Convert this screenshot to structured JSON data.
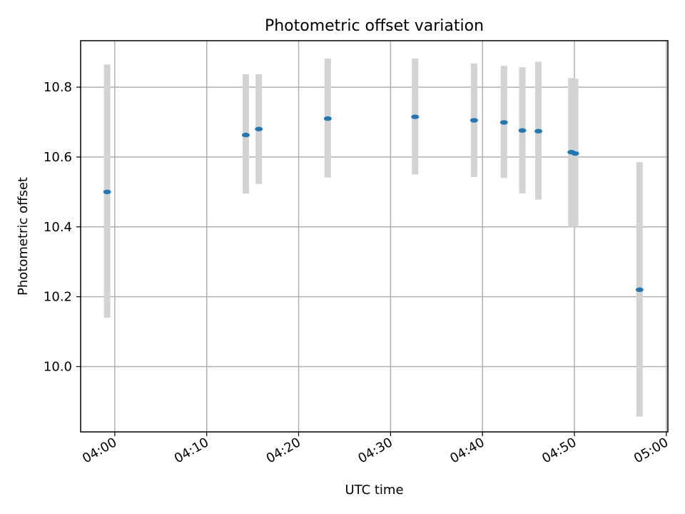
{
  "chart_data": {
    "type": "scatter",
    "title": "Photometric offset variation",
    "xlabel": "UTC time",
    "ylabel": "Photometric offset",
    "x_ticks": [
      "04:00",
      "04:10",
      "04:20",
      "04:30",
      "04:40",
      "04:50",
      "05:00"
    ],
    "y_ticks": [
      "10.0",
      "10.2",
      "10.4",
      "10.6",
      "10.8"
    ],
    "xlim": [
      "03:56:17",
      "05:00:10"
    ],
    "ylim": [
      9.813,
      10.933
    ],
    "grid": true,
    "point_color": "#1f77b4",
    "errorbar_color": "#d3d3d3",
    "points": [
      {
        "x": "03:59:10",
        "y": 10.5,
        "low": 10.14,
        "high": 10.865
      },
      {
        "x": "04:14:15",
        "y": 10.663,
        "low": 10.495,
        "high": 10.837
      },
      {
        "x": "04:15:40",
        "y": 10.68,
        "low": 10.523,
        "high": 10.837
      },
      {
        "x": "04:23:10",
        "y": 10.71,
        "low": 10.541,
        "high": 10.882
      },
      {
        "x": "04:32:40",
        "y": 10.715,
        "low": 10.55,
        "high": 10.882
      },
      {
        "x": "04:39:05",
        "y": 10.705,
        "low": 10.543,
        "high": 10.868
      },
      {
        "x": "04:42:20",
        "y": 10.699,
        "low": 10.54,
        "high": 10.861
      },
      {
        "x": "04:44:20",
        "y": 10.676,
        "low": 10.496,
        "high": 10.857
      },
      {
        "x": "04:46:05",
        "y": 10.674,
        "low": 10.478,
        "high": 10.873
      },
      {
        "x": "04:49:40",
        "y": 10.614,
        "low": 10.4,
        "high": 10.826
      },
      {
        "x": "04:50:05",
        "y": 10.61,
        "low": 10.4,
        "high": 10.824
      },
      {
        "x": "04:57:05",
        "y": 10.22,
        "low": 9.857,
        "high": 10.585
      }
    ]
  }
}
